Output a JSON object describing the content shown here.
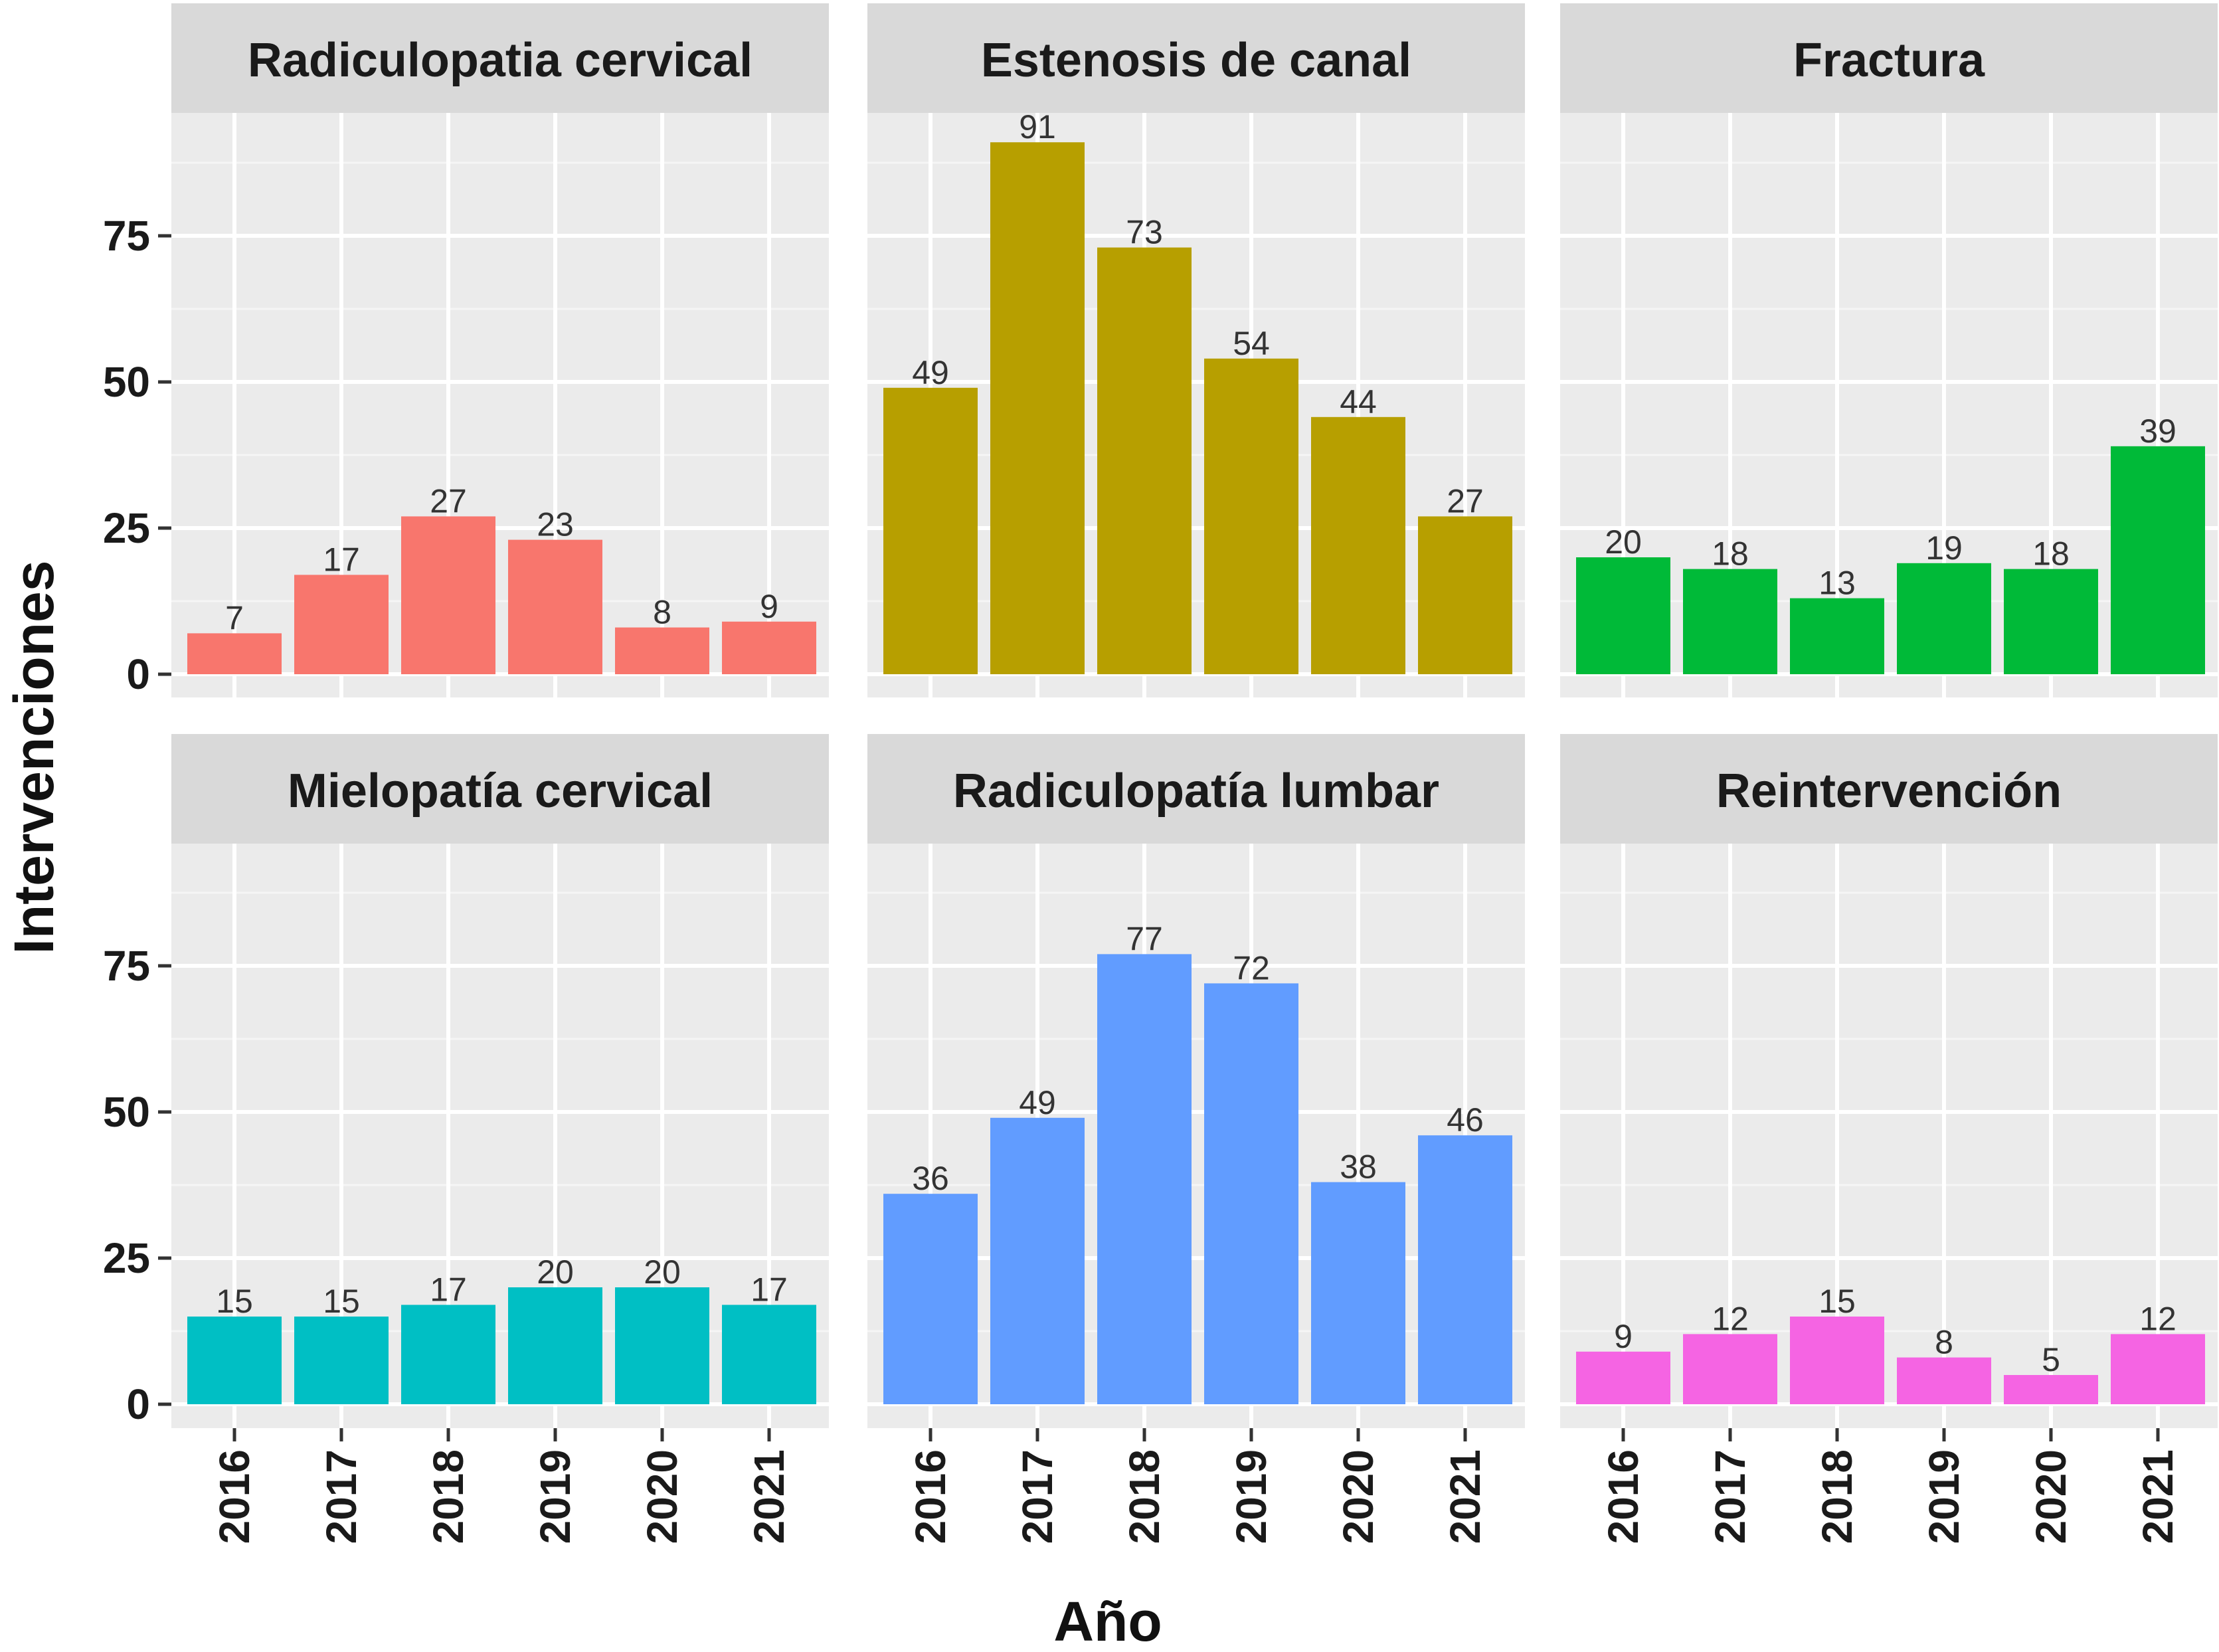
{
  "chart_data": {
    "type": "bar",
    "xlabel": "Año",
    "ylabel": "Intervenciones",
    "categories": [
      "2016",
      "2017",
      "2018",
      "2019",
      "2020",
      "2021"
    ],
    "ylim": [
      0,
      97
    ],
    "yticks": [
      0,
      25,
      50,
      75
    ],
    "yticks_text": [
      "0",
      "25",
      "50",
      "75"
    ],
    "grid": true,
    "facets": [
      {
        "name": "Radiculopatia cervical",
        "color": "#F8766D",
        "values": [
          7,
          17,
          27,
          23,
          8,
          9
        ],
        "labels": [
          "7",
          "17",
          "27",
          "23",
          "8",
          "9"
        ]
      },
      {
        "name": "Estenosis de canal",
        "color": "#B79F00",
        "values": [
          49,
          91,
          73,
          54,
          44,
          27
        ],
        "labels": [
          "49",
          "91",
          "73",
          "54",
          "44",
          "27"
        ]
      },
      {
        "name": "Fractura",
        "color": "#00BA38",
        "values": [
          20,
          18,
          13,
          19,
          18,
          39
        ],
        "labels": [
          "20",
          "18",
          "13",
          "19",
          "18",
          "39"
        ]
      },
      {
        "name": "Mielopatía cervical",
        "color": "#00BFC4",
        "values": [
          15,
          15,
          17,
          20,
          20,
          17
        ],
        "labels": [
          "15",
          "15",
          "17",
          "20",
          "20",
          "17"
        ]
      },
      {
        "name": "Radiculopatía lumbar",
        "color": "#619CFF",
        "values": [
          36,
          49,
          77,
          72,
          38,
          46
        ],
        "labels": [
          "36",
          "49",
          "77",
          "72",
          "38",
          "46"
        ]
      },
      {
        "name": "Reintervención",
        "color": "#F564E3",
        "values": [
          9,
          12,
          15,
          8,
          5,
          12
        ],
        "labels": [
          "9",
          "12",
          "15",
          "8",
          "5",
          "12"
        ]
      }
    ]
  }
}
